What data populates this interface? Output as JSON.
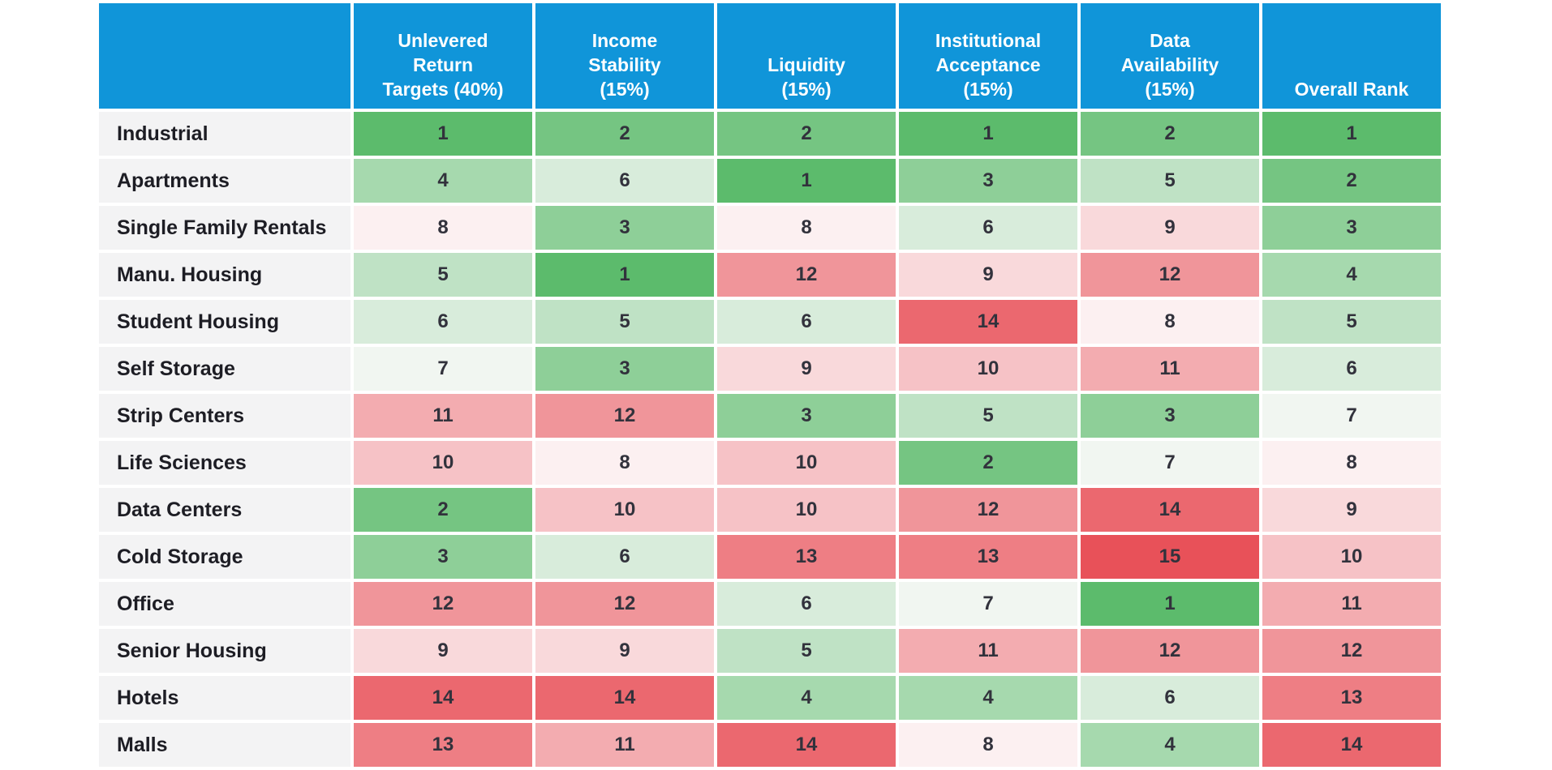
{
  "colors": {
    "header_bg": "#1095D9",
    "header_text": "#FFFFFF",
    "sector_bg": "#F3F3F4",
    "sector_text": "#1D1D24",
    "cell_text": "#32323C",
    "grid_gap": "#FFFFFF"
  },
  "chart_data": {
    "type": "heatmap",
    "description": "Real estate sector ranking scorecard; each cell shows the sector's rank per criterion (1 = best, 15 = worst), shaded green (good) to red (bad)",
    "corner_label": "",
    "columns": [
      "Unlevered\nReturn\nTargets (40%)",
      "Income\nStability\n(15%)",
      "Liquidity\n(15%)",
      "Institutional\nAcceptance\n(15%)",
      "Data\nAvailability\n(15%)",
      "Overall Rank"
    ],
    "rows": [
      {
        "label": "Industrial",
        "values": [
          1,
          2,
          2,
          1,
          2,
          1
        ]
      },
      {
        "label": "Apartments",
        "values": [
          4,
          6,
          1,
          3,
          5,
          2
        ]
      },
      {
        "label": "Single Family Rentals",
        "values": [
          8,
          3,
          8,
          6,
          9,
          3
        ]
      },
      {
        "label": "Manu. Housing",
        "values": [
          5,
          1,
          12,
          9,
          12,
          4
        ]
      },
      {
        "label": "Student Housing",
        "values": [
          6,
          5,
          6,
          14,
          8,
          5
        ]
      },
      {
        "label": "Self Storage",
        "values": [
          7,
          3,
          9,
          10,
          11,
          6
        ]
      },
      {
        "label": "Strip Centers",
        "values": [
          11,
          12,
          3,
          5,
          3,
          7
        ]
      },
      {
        "label": "Life Sciences",
        "values": [
          10,
          8,
          10,
          2,
          7,
          8
        ]
      },
      {
        "label": "Data Centers",
        "values": [
          2,
          10,
          10,
          12,
          14,
          9
        ]
      },
      {
        "label": "Cold Storage",
        "values": [
          3,
          6,
          13,
          13,
          15,
          10
        ]
      },
      {
        "label": "Office",
        "values": [
          12,
          12,
          6,
          7,
          1,
          11
        ]
      },
      {
        "label": "Senior Housing",
        "values": [
          9,
          9,
          5,
          11,
          12,
          12
        ]
      },
      {
        "label": "Hotels",
        "values": [
          14,
          14,
          4,
          4,
          6,
          13
        ]
      },
      {
        "label": "Malls",
        "values": [
          13,
          11,
          14,
          8,
          4,
          14
        ]
      }
    ],
    "value_semantics": "rank (1 = best)",
    "rank_range": [
      1,
      15
    ],
    "color_scale": {
      "best": "#5CBB6C",
      "mid": "#FDFBFC",
      "worst": "#E85159",
      "min_rank": 1,
      "mid_rank": 7.5,
      "max_rank": 15
    },
    "legend": "none",
    "grid": "white gaps between cells"
  }
}
